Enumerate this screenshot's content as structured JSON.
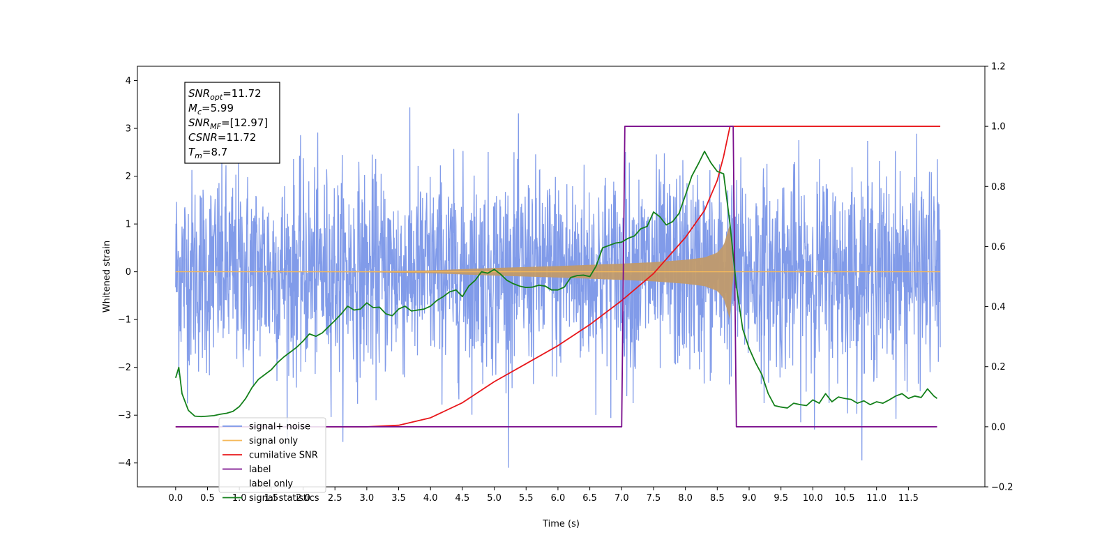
{
  "chart_data": {
    "type": "line",
    "xlabel": "Time (s)",
    "ylabel_left": "Whitened strain",
    "ylabel_right": "",
    "xlim": [
      -0.6,
      12.7
    ],
    "ylim_left": [
      -4.5,
      4.3
    ],
    "ylim_right": [
      -0.2,
      1.2
    ],
    "x_ticks": [
      "0.0",
      "0.5",
      "1.0",
      "1.5",
      "2.0",
      "2.5",
      "3.0",
      "3.5",
      "4.0",
      "4.5",
      "5.0",
      "5.5",
      "6.0",
      "6.5",
      "7.0",
      "7.5",
      "8.0",
      "8.5",
      "9.0",
      "9.5",
      "10.0",
      "10.5",
      "11.0",
      "11.5"
    ],
    "y_ticks_left": [
      "4",
      "3",
      "2",
      "1",
      "0",
      "−1",
      "−2",
      "−3",
      "−4"
    ],
    "y_ticks_right": [
      "1.2",
      "1.0",
      "0.8",
      "0.6",
      "0.4",
      "0.2",
      "0.0",
      "−0.2"
    ],
    "grid": false,
    "legend_position": "lower-left",
    "annotation": [
      {
        "base": "SNR",
        "sub": "opt",
        "value": "=11.72"
      },
      {
        "base": "M",
        "sub": "c",
        "value": "=5.99"
      },
      {
        "base": "SNR",
        "sub": "MF",
        "value": "=[12.97]"
      },
      {
        "base": "CSNR",
        "sub": "",
        "value": "=11.72"
      },
      {
        "base": "T",
        "sub": "m",
        "value": "=8.7"
      }
    ],
    "series": [
      {
        "name": "signal+ noise",
        "axis": "left",
        "color": "#7a96e8",
        "style": "dense noise, amplitude about ±2.5 with peaks near ±3.8, t = 0 to 12.0"
      },
      {
        "name": "signal only",
        "axis": "left",
        "color": "#f5b95a",
        "envelope": {
          "t": [
            0.0,
            3.0,
            4.0,
            5.0,
            6.0,
            7.0,
            7.5,
            8.0,
            8.3,
            8.5,
            8.6,
            8.7,
            8.75
          ],
          "amp": [
            0.0,
            0.01,
            0.03,
            0.08,
            0.12,
            0.17,
            0.2,
            0.25,
            0.3,
            0.4,
            0.55,
            1.0,
            0.0
          ]
        }
      },
      {
        "name": "cumilative SNR",
        "axis": "right",
        "color": "#e8161a",
        "x": [
          0.0,
          2.0,
          3.0,
          3.5,
          4.0,
          4.5,
          5.0,
          5.5,
          6.0,
          6.5,
          7.0,
          7.5,
          8.0,
          8.3,
          8.5,
          8.6,
          8.7,
          12.0
        ],
        "y": [
          0.0,
          0.0,
          0.0,
          0.005,
          0.03,
          0.08,
          0.15,
          0.21,
          0.27,
          0.34,
          0.42,
          0.51,
          0.63,
          0.72,
          0.82,
          0.9,
          1.0,
          1.0
        ]
      },
      {
        "name": "label",
        "axis": "right",
        "color": "#7a0d8c",
        "x": [
          0.0,
          7.0,
          7.05,
          8.75,
          8.8,
          11.95
        ],
        "y": [
          0.0,
          0.0,
          1.0,
          1.0,
          0.0,
          0.0
        ]
      },
      {
        "name": "label only",
        "axis": "right",
        "color": "#ffffff",
        "hidden": true
      },
      {
        "name": "signal statistics",
        "axis": "left",
        "color": "#13801a",
        "x": [
          0.0,
          0.05,
          0.1,
          0.2,
          0.3,
          0.4,
          0.5,
          0.6,
          0.7,
          0.8,
          0.9,
          1.0,
          1.1,
          1.2,
          1.3,
          1.4,
          1.5,
          1.6,
          1.7,
          1.8,
          1.9,
          2.0,
          2.1,
          2.2,
          2.3,
          2.4,
          2.5,
          2.6,
          2.7,
          2.8,
          2.9,
          3.0,
          3.1,
          3.2,
          3.3,
          3.4,
          3.5,
          3.6,
          3.7,
          3.8,
          3.9,
          4.0,
          4.1,
          4.2,
          4.3,
          4.4,
          4.5,
          4.6,
          4.7,
          4.8,
          4.9,
          5.0,
          5.1,
          5.2,
          5.3,
          5.4,
          5.5,
          5.6,
          5.7,
          5.8,
          5.9,
          6.0,
          6.1,
          6.2,
          6.3,
          6.4,
          6.5,
          6.6,
          6.7,
          6.8,
          6.9,
          7.0,
          7.1,
          7.2,
          7.3,
          7.4,
          7.5,
          7.6,
          7.7,
          7.8,
          7.9,
          8.0,
          8.1,
          8.2,
          8.3,
          8.4,
          8.5,
          8.6,
          8.7,
          8.8,
          8.9,
          9.0,
          9.1,
          9.2,
          9.3,
          9.4,
          9.5,
          9.6,
          9.7,
          9.8,
          9.9,
          10.0,
          10.1,
          10.2,
          10.3,
          10.4,
          10.5,
          10.6,
          10.7,
          10.8,
          10.9,
          11.0,
          11.1,
          11.2,
          11.3,
          11.4,
          11.5,
          11.6,
          11.7,
          11.8,
          11.9,
          11.95
        ],
        "y": [
          -2.22,
          -2.0,
          -2.55,
          -2.9,
          -3.02,
          -3.03,
          -3.02,
          -3.01,
          -2.98,
          -2.96,
          -2.92,
          -2.82,
          -2.65,
          -2.42,
          -2.25,
          -2.15,
          -2.05,
          -1.9,
          -1.78,
          -1.68,
          -1.58,
          -1.45,
          -1.3,
          -1.35,
          -1.28,
          -1.15,
          -1.02,
          -0.88,
          -0.72,
          -0.8,
          -0.78,
          -0.65,
          -0.75,
          -0.74,
          -0.88,
          -0.92,
          -0.78,
          -0.72,
          -0.82,
          -0.8,
          -0.78,
          -0.72,
          -0.6,
          -0.52,
          -0.42,
          -0.38,
          -0.52,
          -0.3,
          -0.18,
          0.0,
          -0.03,
          0.05,
          -0.05,
          -0.18,
          -0.25,
          -0.3,
          -0.33,
          -0.32,
          -0.28,
          -0.3,
          -0.38,
          -0.38,
          -0.32,
          -0.12,
          -0.08,
          -0.07,
          -0.1,
          0.12,
          0.5,
          0.55,
          0.6,
          0.62,
          0.7,
          0.75,
          0.9,
          0.95,
          1.25,
          1.15,
          0.98,
          1.05,
          1.22,
          1.6,
          2.0,
          2.25,
          2.52,
          2.28,
          2.1,
          2.05,
          1.0,
          -0.3,
          -1.2,
          -1.6,
          -1.9,
          -2.15,
          -2.55,
          -2.8,
          -2.83,
          -2.85,
          -2.75,
          -2.78,
          -2.8,
          -2.68,
          -2.75,
          -2.55,
          -2.72,
          -2.62,
          -2.65,
          -2.67,
          -2.75,
          -2.7,
          -2.78,
          -2.72,
          -2.75,
          -2.68,
          -2.6,
          -2.55,
          -2.65,
          -2.6,
          -2.63,
          -2.45,
          -2.6,
          -2.65
        ]
      }
    ]
  }
}
